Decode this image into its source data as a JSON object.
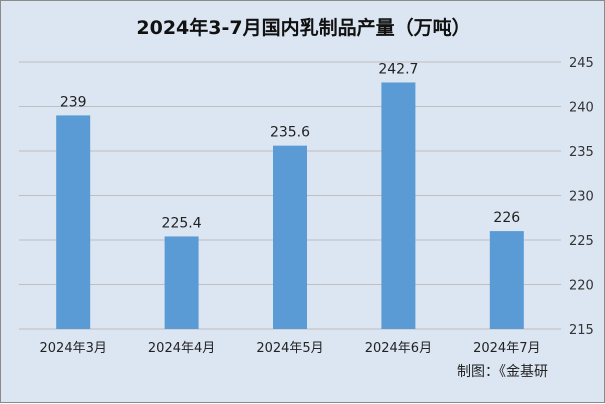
{
  "chart_data": {
    "type": "bar",
    "title": "2024年3-7月国内乳制品产量（万吨）",
    "categories": [
      "2024年3月",
      "2024年4月",
      "2024年5月",
      "2024年6月",
      "2024年7月"
    ],
    "values": [
      239,
      225.4,
      235.6,
      242.7,
      226
    ],
    "value_labels": [
      "239",
      "225.4",
      "235.6",
      "242.7",
      "226"
    ],
    "ylim": [
      215,
      245
    ],
    "yticks": [
      215,
      220,
      225,
      230,
      235,
      240,
      245
    ],
    "y_axis_side": "right",
    "grid": true,
    "legend": "none",
    "bar_color": "#5b9bd5",
    "grid_color": "#bfbfbf",
    "background_color": "#dce6f2"
  },
  "source_note": "制图：《金基研"
}
